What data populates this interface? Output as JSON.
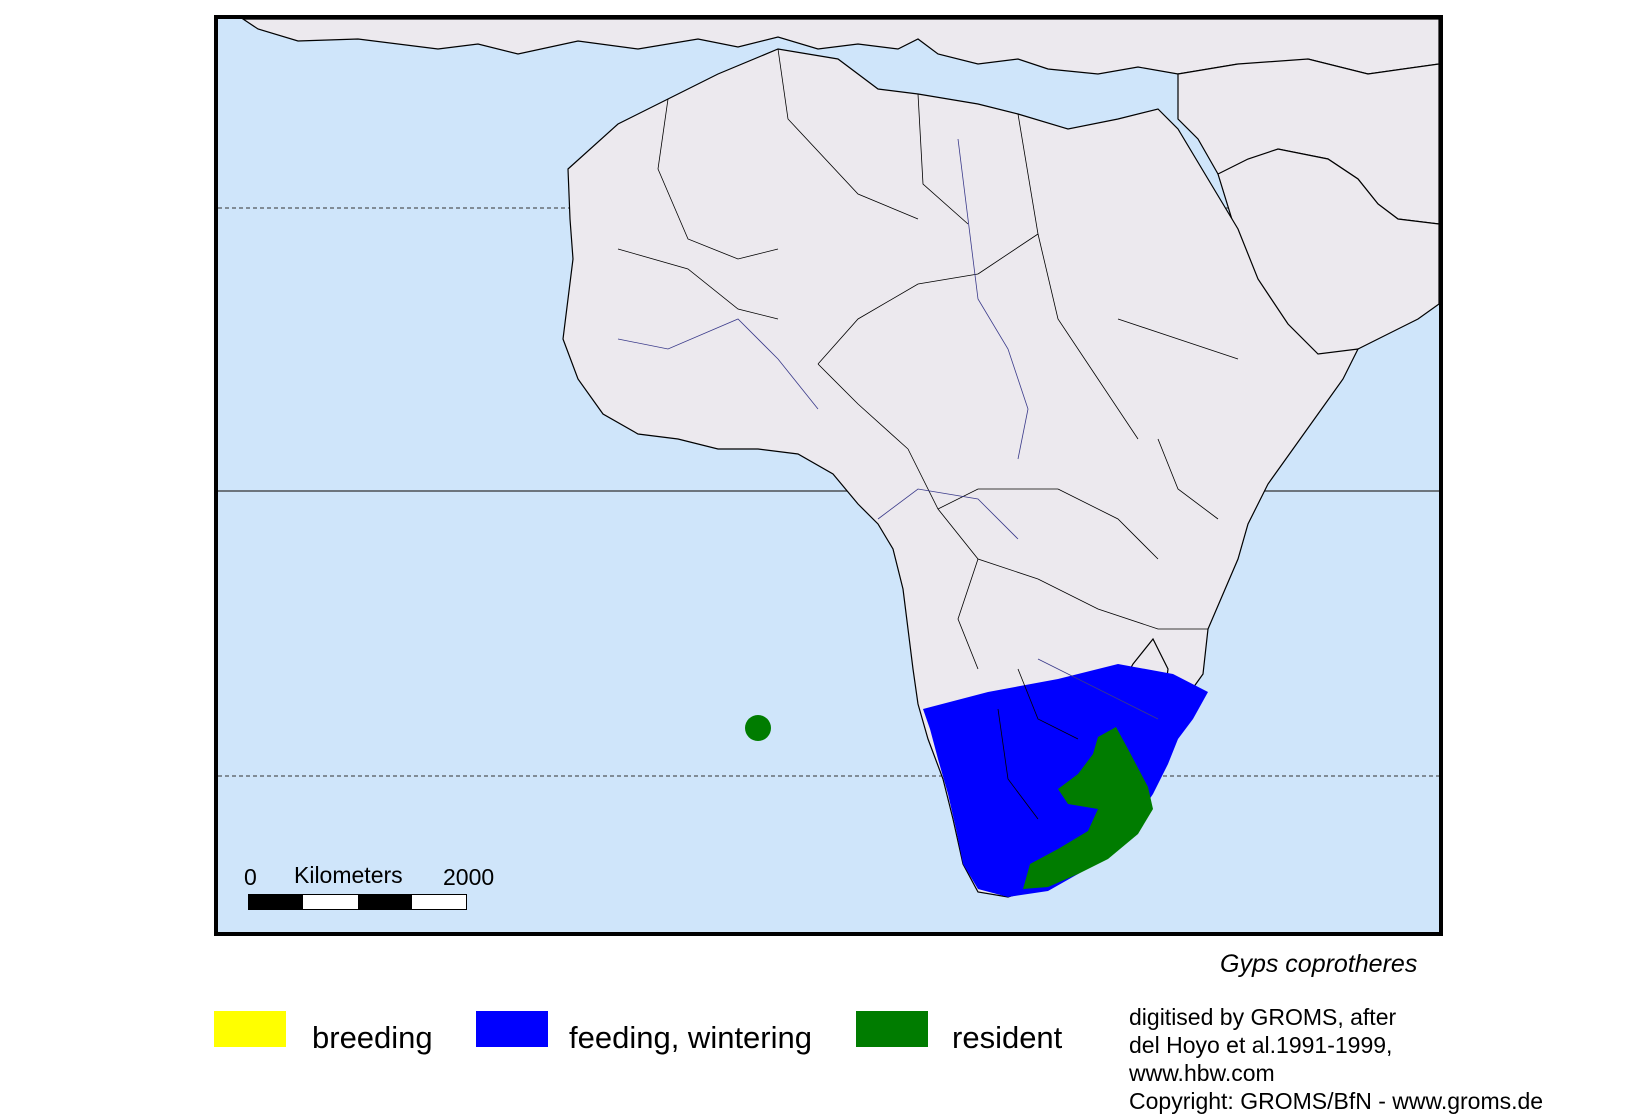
{
  "map": {
    "ocean_color": "#cfe5fa",
    "land_color": "#ece9ee",
    "border_color": "#000000",
    "river_color": "#3a3a8a",
    "range_colors": {
      "breeding": "#ffff00",
      "feeding_wintering": "#0000ff",
      "resident": "#007c00"
    },
    "scale": {
      "start_label": "0",
      "unit_label": "Kilometers",
      "end_label": "2000"
    }
  },
  "species": "Gyps coprotheres",
  "legend": [
    {
      "label": "breeding",
      "color": "#ffff00"
    },
    {
      "label": "feeding, wintering",
      "color": "#0000ff"
    },
    {
      "label": "resident",
      "color": "#007c00"
    }
  ],
  "credits": [
    "digitised by GROMS, after",
    "del Hoyo et al.1991-1999,",
    "www.hbw.com",
    "Copyright: GROMS/BfN - www.groms.de"
  ]
}
